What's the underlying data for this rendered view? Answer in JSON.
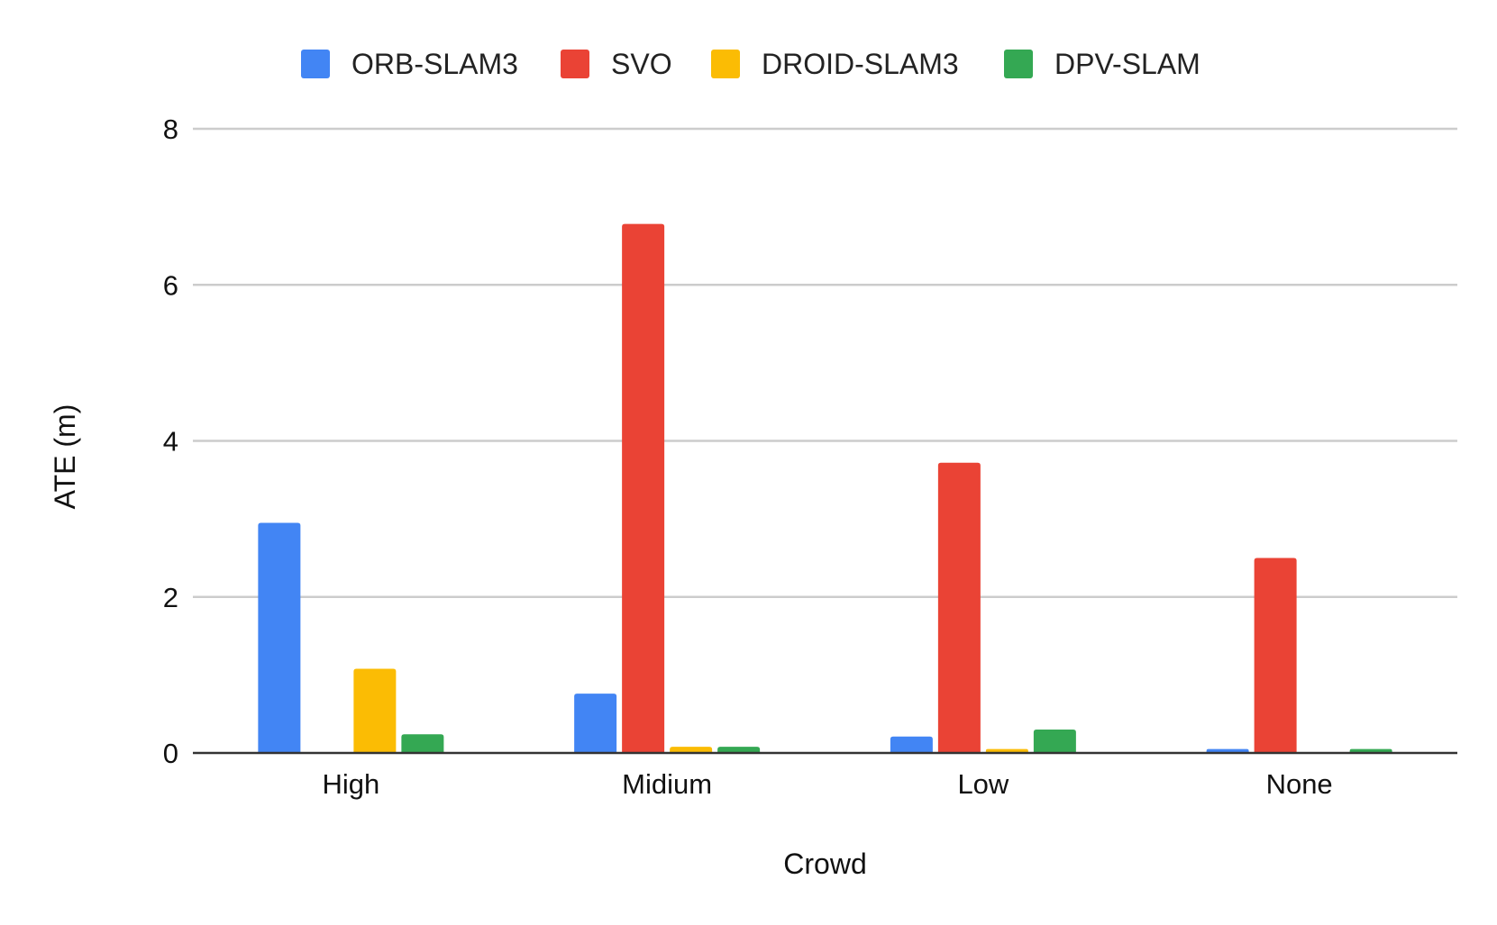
{
  "chart_data": {
    "type": "bar",
    "categories": [
      "High",
      "Midium",
      "Low",
      "None"
    ],
    "series": [
      {
        "name": "ORB-SLAM3",
        "color": "#4285F4",
        "values": [
          2.95,
          0.76,
          0.21,
          0.05
        ]
      },
      {
        "name": "SVO",
        "color": "#EA4335",
        "values": [
          null,
          6.78,
          3.72,
          2.5
        ]
      },
      {
        "name": "DROID-SLAM3",
        "color": "#FBBC04",
        "values": [
          1.08,
          0.08,
          0.05,
          null
        ]
      },
      {
        "name": "DPV-SLAM",
        "color": "#34A853",
        "values": [
          0.24,
          0.08,
          0.3,
          0.05
        ]
      }
    ],
    "xlabel": "Crowd",
    "ylabel": "ATE (m)",
    "ylim": [
      0,
      8
    ],
    "yticks": [
      "0",
      "2",
      "4",
      "6",
      "8"
    ],
    "grid": true,
    "legend_position": "top"
  }
}
